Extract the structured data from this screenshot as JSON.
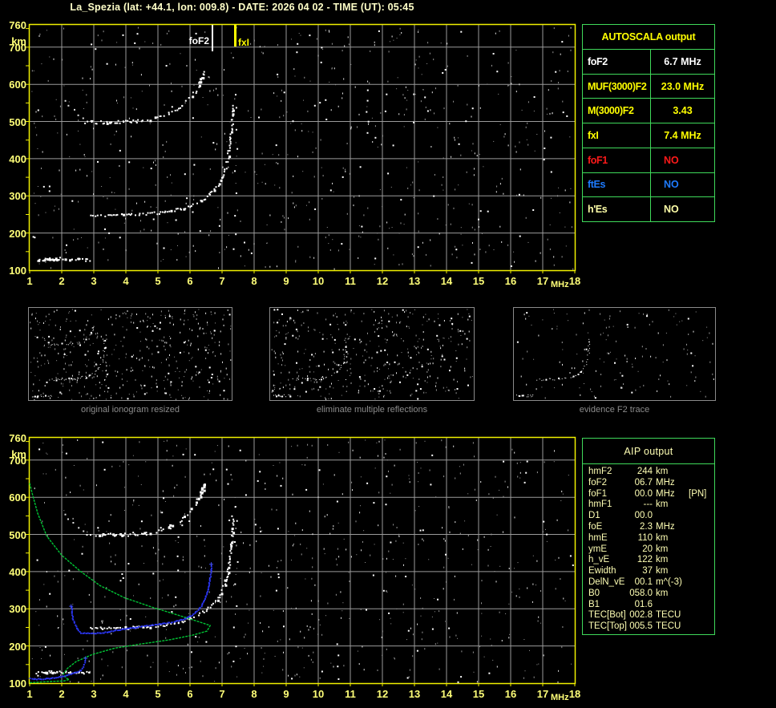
{
  "title": "La_Spezia (lat: +44.1, lon: 009.8) - DATE: 2026 04 02 - TIME (UT): 05:45",
  "axes": {
    "y_unit": "km",
    "x_unit": "MHz",
    "y_ticks": [
      "760",
      "700",
      "600",
      "500",
      "400",
      "300",
      "200",
      "100"
    ],
    "x_ticks": [
      "1",
      "2",
      "3",
      "4",
      "5",
      "6",
      "7",
      "8",
      "9",
      "10",
      "11",
      "12",
      "13",
      "14",
      "15",
      "16",
      "17",
      "18"
    ]
  },
  "top_plot_markers": {
    "foF2": "foF2",
    "fxI": "fxI"
  },
  "panels": [
    {
      "caption": "original ionogram resized"
    },
    {
      "caption": "eliminate multiple reflections"
    },
    {
      "caption": "evidence F2 trace"
    }
  ],
  "autoscala": {
    "title": "AUTOSCALA output",
    "rows": [
      {
        "label": "foF2",
        "value": "6.7 MHz",
        "color": "#ffffff"
      },
      {
        "label": "MUF(3000)F2",
        "value": "23.0 MHz",
        "color": "#ffff00"
      },
      {
        "label": "M(3000)F2",
        "value": "3.43",
        "color": "#ffff00"
      },
      {
        "label": "fxI",
        "value": "7.4 MHz",
        "color": "#ffff00"
      },
      {
        "label": "foF1",
        "value": "NO",
        "color": "#ff1a1a"
      },
      {
        "label": "ftEs",
        "value": "NO",
        "color": "#1e7bff"
      },
      {
        "label": "h'Es",
        "value": "NO",
        "color": "#ffffa8"
      }
    ]
  },
  "aip": {
    "title": "AIP output",
    "rows": [
      {
        "label": "hmF2",
        "value": "244",
        "unit": "km",
        "extra": ""
      },
      {
        "label": "foF2",
        "value": "06.7",
        "unit": "MHz",
        "extra": ""
      },
      {
        "label": "foF1",
        "value": "00.0",
        "unit": "MHz",
        "extra": "[PN]"
      },
      {
        "label": "hmF1",
        "value": "---",
        "unit": "km",
        "extra": ""
      },
      {
        "label": "D1",
        "value": "00.0",
        "unit": "",
        "extra": ""
      },
      {
        "label": "foE",
        "value": "2.3",
        "unit": "MHz",
        "extra": ""
      },
      {
        "label": "hmE",
        "value": "110",
        "unit": "km",
        "extra": ""
      },
      {
        "label": "ymE",
        "value": "20",
        "unit": "km",
        "extra": ""
      },
      {
        "label": "h_vE",
        "value": "122",
        "unit": "km",
        "extra": ""
      },
      {
        "label": "Ewidth",
        "value": "37",
        "unit": "km",
        "extra": ""
      },
      {
        "label": "DelN_vE",
        "value": "00.1",
        "unit": "m^(-3)",
        "extra": ""
      },
      {
        "label": "B0",
        "value": "058.0",
        "unit": "km",
        "extra": ""
      },
      {
        "label": "B1",
        "value": "01.6",
        "unit": "",
        "extra": ""
      },
      {
        "label": "TEC[Bot]",
        "value": "002.8",
        "unit": "TECU",
        "extra": ""
      },
      {
        "label": "TEC[Top]",
        "value": "005.5",
        "unit": "TECU",
        "extra": ""
      }
    ]
  },
  "colors": {
    "background": "#000000",
    "plot_border": "#f0f000",
    "grid": "#9a9a9a",
    "tick_text": "#ffff78",
    "title_text": "#ffffc8",
    "table_border": "#3fd95a",
    "caption_gray": "#8c8c8c",
    "echo_white": "#ffffff",
    "profile_green": "#00c435",
    "trace_blue": "#2a35f0",
    "fof2_marker": "#ffffff",
    "fxi_marker": "#ffff00"
  },
  "chart_data": [
    {
      "type": "scatter",
      "title": "ionogram with AUTOSCALA markers (top panel)",
      "xlabel": "MHz",
      "ylabel": "km",
      "xlim": [
        1,
        18
      ],
      "ylim": [
        100,
        760
      ],
      "grid": true,
      "legend_position": "none",
      "annotations": [
        {
          "label": "foF2",
          "mhz": 6.7
        },
        {
          "label": "fxI",
          "mhz": 7.4
        }
      ],
      "series": [
        {
          "name": "F2-trace",
          "points_mhz_km": [
            [
              2.9,
              250
            ],
            [
              3.4,
              250
            ],
            [
              4.0,
              251
            ],
            [
              4.6,
              253
            ],
            [
              5.0,
              256
            ],
            [
              5.35,
              261
            ],
            [
              5.7,
              267
            ],
            [
              5.95,
              274
            ],
            [
              6.2,
              283
            ],
            [
              6.45,
              295
            ],
            [
              6.65,
              310
            ],
            [
              6.85,
              330
            ],
            [
              7.0,
              352
            ],
            [
              7.1,
              378
            ],
            [
              7.17,
              405
            ],
            [
              7.22,
              435
            ],
            [
              7.26,
              465
            ],
            [
              7.29,
              495
            ],
            [
              7.3,
              525
            ],
            [
              7.31,
              555
            ]
          ]
        },
        {
          "name": "F2-multiple",
          "points_mhz_km": [
            [
              2.75,
              500
            ],
            [
              3.2,
              500
            ],
            [
              3.7,
              501
            ],
            [
              4.2,
              502
            ],
            [
              4.6,
              505
            ],
            [
              4.9,
              510
            ],
            [
              5.2,
              517
            ],
            [
              5.45,
              527
            ],
            [
              5.7,
              541
            ],
            [
              5.9,
              558
            ],
            [
              6.1,
              578
            ],
            [
              6.25,
              600
            ],
            [
              6.37,
              622
            ],
            [
              6.45,
              640
            ]
          ]
        },
        {
          "name": "multiple-left-tail",
          "points_mhz_km": [
            [
              2.1,
              557
            ],
            [
              2.2,
              545
            ],
            [
              2.35,
              532
            ],
            [
              2.5,
              520
            ],
            [
              2.65,
              510
            ]
          ]
        },
        {
          "name": "E-region",
          "points_mhz_km": [
            [
              1.2,
              130
            ],
            [
              1.45,
              131
            ],
            [
              1.7,
              132
            ],
            [
              1.95,
              132
            ],
            [
              2.2,
              132
            ],
            [
              2.45,
              131
            ],
            [
              2.7,
              130
            ],
            [
              2.9,
              128
            ]
          ]
        },
        {
          "name": "x-spread",
          "points_mhz_km": [
            [
              7.35,
              160
            ],
            [
              7.4,
              200
            ],
            [
              7.37,
              250
            ],
            [
              7.42,
              310
            ],
            [
              7.38,
              370
            ],
            [
              7.44,
              430
            ],
            [
              7.4,
              480
            ],
            [
              7.43,
              540
            ],
            [
              7.38,
              575
            ]
          ]
        },
        {
          "name": "clutter",
          "points_mhz_km": [
            [
              11.5,
              470
            ],
            [
              11.52,
              500
            ],
            [
              11.48,
              530
            ],
            [
              11.5,
              560
            ],
            [
              11.5,
              585
            ],
            [
              9.3,
              690
            ],
            [
              9.32,
              710
            ],
            [
              13.6,
              300
            ],
            [
              17.0,
              400
            ],
            [
              17.02,
              430
            ]
          ]
        }
      ]
    },
    {
      "type": "scatter",
      "title": "ionogram with AIP inversion (bottom panel)",
      "xlabel": "MHz",
      "ylabel": "km",
      "xlim": [
        1,
        18
      ],
      "ylim": [
        100,
        760
      ],
      "grid": true,
      "legend_position": "none",
      "series": [
        {
          "name": "electron-density-profile",
          "color": "green",
          "points_mhz_km": [
            [
              1.0,
              638
            ],
            [
              1.08,
              610
            ],
            [
              1.25,
              557
            ],
            [
              1.53,
              496
            ],
            [
              2.0,
              444
            ],
            [
              2.58,
              401
            ],
            [
              3.2,
              362
            ],
            [
              3.95,
              330
            ],
            [
              4.83,
              304
            ],
            [
              5.63,
              283
            ],
            [
              6.28,
              265
            ],
            [
              6.63,
              255
            ],
            [
              6.53,
              240
            ],
            [
              6.08,
              229
            ],
            [
              5.33,
              216
            ],
            [
              4.45,
              205
            ],
            [
              3.65,
              194
            ],
            [
              2.95,
              177
            ],
            [
              2.45,
              158
            ],
            [
              2.18,
              140
            ],
            [
              2.05,
              125
            ],
            [
              2.13,
              114
            ],
            [
              2.23,
              110
            ],
            [
              2.08,
              106
            ],
            [
              1.58,
              104
            ],
            [
              1.0,
              101
            ]
          ]
        },
        {
          "name": "autoscaled-F-trace",
          "color": "blue",
          "points_mhz_km": [
            [
              2.28,
              308
            ],
            [
              2.33,
              272
            ],
            [
              2.38,
              265
            ],
            [
              2.4,
              259
            ],
            [
              2.45,
              250
            ],
            [
              2.5,
              244
            ],
            [
              2.58,
              237
            ],
            [
              2.8,
              236
            ],
            [
              3.0,
              236
            ],
            [
              3.25,
              237
            ],
            [
              3.58,
              242
            ],
            [
              3.95,
              248
            ],
            [
              4.33,
              252
            ],
            [
              4.7,
              257
            ],
            [
              5.08,
              261
            ],
            [
              5.38,
              265
            ],
            [
              5.63,
              270
            ],
            [
              5.85,
              276
            ],
            [
              6.05,
              285
            ],
            [
              6.2,
              296
            ],
            [
              6.33,
              309
            ],
            [
              6.43,
              324
            ],
            [
              6.5,
              341
            ],
            [
              6.55,
              360
            ],
            [
              6.6,
              380
            ],
            [
              6.63,
              399
            ],
            [
              6.65,
              421
            ]
          ]
        },
        {
          "name": "autoscaled-E-trace",
          "color": "blue",
          "points_mhz_km": [
            [
              1.0,
              114
            ],
            [
              1.1,
              113
            ],
            [
              1.2,
              113
            ],
            [
              1.35,
              113
            ],
            [
              1.5,
              114
            ],
            [
              1.65,
              115
            ],
            [
              1.8,
              117
            ],
            [
              1.95,
              119
            ],
            [
              2.1,
              122
            ],
            [
              2.25,
              126
            ],
            [
              2.4,
              130
            ],
            [
              2.5,
              133
            ],
            [
              2.58,
              137
            ],
            [
              2.65,
              146
            ],
            [
              2.7,
              158
            ],
            [
              2.73,
              168
            ]
          ]
        },
        {
          "name": "clutter",
          "points_mhz_km": [
            [
              10.6,
              115
            ],
            [
              10.6,
              145
            ],
            [
              10.62,
              175
            ],
            [
              10.58,
              205
            ],
            [
              15.3,
              130
            ],
            [
              16.4,
              640
            ],
            [
              16.45,
              670
            ],
            [
              16.5,
              700
            ],
            [
              17.9,
              420
            ],
            [
              17.85,
              445
            ]
          ]
        }
      ]
    }
  ]
}
